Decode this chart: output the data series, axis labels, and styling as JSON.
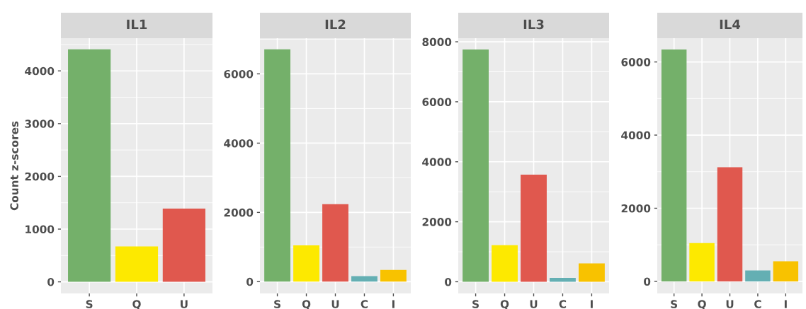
{
  "chart_data": [
    {
      "type": "bar",
      "title": "IL1",
      "ylabel": "Count z-scores",
      "categories": [
        "S",
        "Q",
        "U"
      ],
      "values": [
        4410,
        670,
        1390
      ],
      "colors": [
        "#74b06a",
        "#fde900",
        "#e0584e"
      ],
      "ylim": [
        -220,
        4620
      ],
      "yticks": [
        0,
        1000,
        2000,
        3000,
        4000
      ],
      "grid": true
    },
    {
      "type": "bar",
      "title": "IL2",
      "categories": [
        "S",
        "Q",
        "U",
        "C",
        "I"
      ],
      "values": [
        6710,
        1050,
        2240,
        160,
        340
      ],
      "colors": [
        "#74b06a",
        "#fde900",
        "#e0584e",
        "#64afb3",
        "#f8c200"
      ],
      "ylim": [
        -340,
        7030
      ],
      "yticks": [
        0,
        2000,
        4000,
        6000
      ],
      "grid": true
    },
    {
      "type": "bar",
      "title": "IL3",
      "categories": [
        "S",
        "Q",
        "U",
        "C",
        "I"
      ],
      "values": [
        7740,
        1220,
        3570,
        130,
        610
      ],
      "colors": [
        "#74b06a",
        "#fde900",
        "#e0584e",
        "#64afb3",
        "#f8c200"
      ],
      "ylim": [
        -390,
        8120
      ],
      "yticks": [
        0,
        2000,
        4000,
        6000,
        8000
      ],
      "grid": true
    },
    {
      "type": "bar",
      "title": "IL4",
      "categories": [
        "S",
        "Q",
        "U",
        "C",
        "I"
      ],
      "values": [
        6340,
        1050,
        3120,
        300,
        550
      ],
      "colors": [
        "#74b06a",
        "#fde900",
        "#e0584e",
        "#64afb3",
        "#f8c200"
      ],
      "ylim": [
        -330,
        6650
      ],
      "yticks": [
        0,
        2000,
        4000,
        6000
      ],
      "grid": true
    }
  ]
}
